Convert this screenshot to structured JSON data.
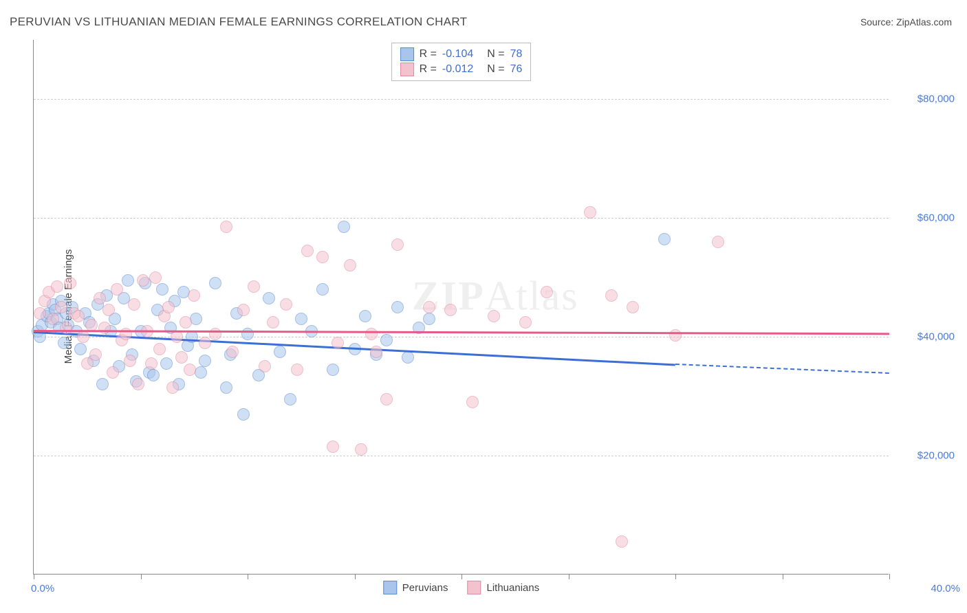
{
  "title": "PERUVIAN VS LITHUANIAN MEDIAN FEMALE EARNINGS CORRELATION CHART",
  "source": "Source: ZipAtlas.com",
  "watermark_bold": "ZIP",
  "watermark_rest": "Atlas",
  "y_axis_title": "Median Female Earnings",
  "chart": {
    "type": "scatter",
    "xlim": [
      0,
      40
    ],
    "ylim": [
      0,
      90000
    ],
    "x_tick_positions": [
      0,
      5,
      10,
      15,
      20,
      25,
      30,
      35,
      40
    ],
    "x_label_min": "0.0%",
    "x_label_max": "40.0%",
    "y_gridlines": [
      {
        "value": 20000,
        "label": "$20,000"
      },
      {
        "value": 40000,
        "label": "$40,000"
      },
      {
        "value": 60000,
        "label": "$60,000"
      },
      {
        "value": 80000,
        "label": "$80,000"
      }
    ],
    "background_color": "#ffffff",
    "grid_color": "#cccccc",
    "axis_color": "#888888",
    "tick_label_color": "#4a7bd8",
    "point_radius": 9,
    "point_opacity": 0.55,
    "series": [
      {
        "name": "Peruvians",
        "fill_color": "#a9c5ec",
        "stroke_color": "#5a8bd0",
        "trend_color": "#3b6fd6",
        "R": "-0.104",
        "N": "78",
        "trend": {
          "x1": 0,
          "y1": 41000,
          "x2": 30,
          "y2": 35500,
          "dash_to_x": 40,
          "dash_to_y": 34000
        },
        "points": [
          [
            0.2,
            41000
          ],
          [
            0.3,
            40000
          ],
          [
            0.4,
            42000
          ],
          [
            0.6,
            43500
          ],
          [
            0.7,
            44000
          ],
          [
            0.8,
            42500
          ],
          [
            0.9,
            45500
          ],
          [
            1.0,
            44500
          ],
          [
            1.1,
            43000
          ],
          [
            1.2,
            41500
          ],
          [
            1.3,
            46000
          ],
          [
            1.4,
            39000
          ],
          [
            1.5,
            44000
          ],
          [
            1.6,
            42000
          ],
          [
            1.8,
            45000
          ],
          [
            2.0,
            41000
          ],
          [
            2.2,
            38000
          ],
          [
            2.4,
            44000
          ],
          [
            2.6,
            42500
          ],
          [
            2.8,
            36000
          ],
          [
            3.0,
            45500
          ],
          [
            3.2,
            32000
          ],
          [
            3.4,
            47000
          ],
          [
            3.6,
            41000
          ],
          [
            3.8,
            43000
          ],
          [
            4.0,
            35000
          ],
          [
            4.2,
            46500
          ],
          [
            4.4,
            49500
          ],
          [
            4.6,
            37000
          ],
          [
            4.8,
            32500
          ],
          [
            5.0,
            41000
          ],
          [
            5.2,
            49000
          ],
          [
            5.4,
            34000
          ],
          [
            5.6,
            33500
          ],
          [
            5.8,
            44500
          ],
          [
            6.0,
            48000
          ],
          [
            6.2,
            35500
          ],
          [
            6.4,
            41500
          ],
          [
            6.6,
            46000
          ],
          [
            6.8,
            32000
          ],
          [
            7.0,
            47500
          ],
          [
            7.2,
            38500
          ],
          [
            7.4,
            40000
          ],
          [
            7.6,
            43000
          ],
          [
            7.8,
            34000
          ],
          [
            8.0,
            36000
          ],
          [
            8.5,
            49000
          ],
          [
            9.0,
            31500
          ],
          [
            9.2,
            37000
          ],
          [
            9.5,
            44000
          ],
          [
            9.8,
            27000
          ],
          [
            10.0,
            40500
          ],
          [
            10.5,
            33500
          ],
          [
            11.0,
            46500
          ],
          [
            11.5,
            37500
          ],
          [
            12.0,
            29500
          ],
          [
            12.5,
            43000
          ],
          [
            13.0,
            41000
          ],
          [
            13.5,
            48000
          ],
          [
            14.0,
            34500
          ],
          [
            14.5,
            58500
          ],
          [
            15.0,
            38000
          ],
          [
            15.5,
            43500
          ],
          [
            16.0,
            37000
          ],
          [
            16.5,
            39500
          ],
          [
            17.0,
            45000
          ],
          [
            17.5,
            36500
          ],
          [
            18.0,
            41500
          ],
          [
            18.5,
            43000
          ],
          [
            29.5,
            56500
          ]
        ]
      },
      {
        "name": "Lithuanians",
        "fill_color": "#f3c2ce",
        "stroke_color": "#e08aa0",
        "trend_color": "#e65a8a",
        "R": "-0.012",
        "N": "76",
        "trend": {
          "x1": 0,
          "y1": 41200,
          "x2": 40,
          "y2": 40700
        },
        "points": [
          [
            0.3,
            44000
          ],
          [
            0.5,
            46000
          ],
          [
            0.7,
            47500
          ],
          [
            0.9,
            43000
          ],
          [
            1.1,
            48500
          ],
          [
            1.3,
            45000
          ],
          [
            1.5,
            41500
          ],
          [
            1.7,
            49000
          ],
          [
            1.9,
            44000
          ],
          [
            2.1,
            43500
          ],
          [
            2.3,
            40000
          ],
          [
            2.5,
            35500
          ],
          [
            2.7,
            42000
          ],
          [
            2.9,
            37000
          ],
          [
            3.1,
            46500
          ],
          [
            3.3,
            41500
          ],
          [
            3.5,
            44500
          ],
          [
            3.7,
            34000
          ],
          [
            3.9,
            48000
          ],
          [
            4.1,
            39500
          ],
          [
            4.3,
            40500
          ],
          [
            4.5,
            36000
          ],
          [
            4.7,
            45500
          ],
          [
            4.9,
            32000
          ],
          [
            5.1,
            49500
          ],
          [
            5.3,
            41000
          ],
          [
            5.5,
            35500
          ],
          [
            5.7,
            50000
          ],
          [
            5.9,
            38000
          ],
          [
            6.1,
            43500
          ],
          [
            6.3,
            45000
          ],
          [
            6.5,
            31500
          ],
          [
            6.7,
            40000
          ],
          [
            6.9,
            36500
          ],
          [
            7.1,
            42500
          ],
          [
            7.3,
            34500
          ],
          [
            7.5,
            47000
          ],
          [
            8.0,
            39000
          ],
          [
            8.5,
            40500
          ],
          [
            9.0,
            58500
          ],
          [
            9.3,
            37500
          ],
          [
            9.8,
            44500
          ],
          [
            10.3,
            48500
          ],
          [
            10.8,
            35000
          ],
          [
            11.2,
            42500
          ],
          [
            11.8,
            45500
          ],
          [
            12.3,
            34500
          ],
          [
            12.8,
            54500
          ],
          [
            13.5,
            53500
          ],
          [
            14.0,
            21500
          ],
          [
            14.2,
            39000
          ],
          [
            14.8,
            52000
          ],
          [
            15.3,
            21000
          ],
          [
            15.8,
            40500
          ],
          [
            16.0,
            37500
          ],
          [
            16.5,
            29500
          ],
          [
            17.0,
            55500
          ],
          [
            18.5,
            45000
          ],
          [
            19.5,
            44500
          ],
          [
            20.5,
            29000
          ],
          [
            21.5,
            43500
          ],
          [
            23.0,
            42500
          ],
          [
            24.0,
            47500
          ],
          [
            26.0,
            61000
          ],
          [
            27.0,
            47000
          ],
          [
            27.5,
            5500
          ],
          [
            28.0,
            45000
          ],
          [
            30.0,
            40200
          ],
          [
            32.0,
            56000
          ]
        ]
      }
    ]
  }
}
